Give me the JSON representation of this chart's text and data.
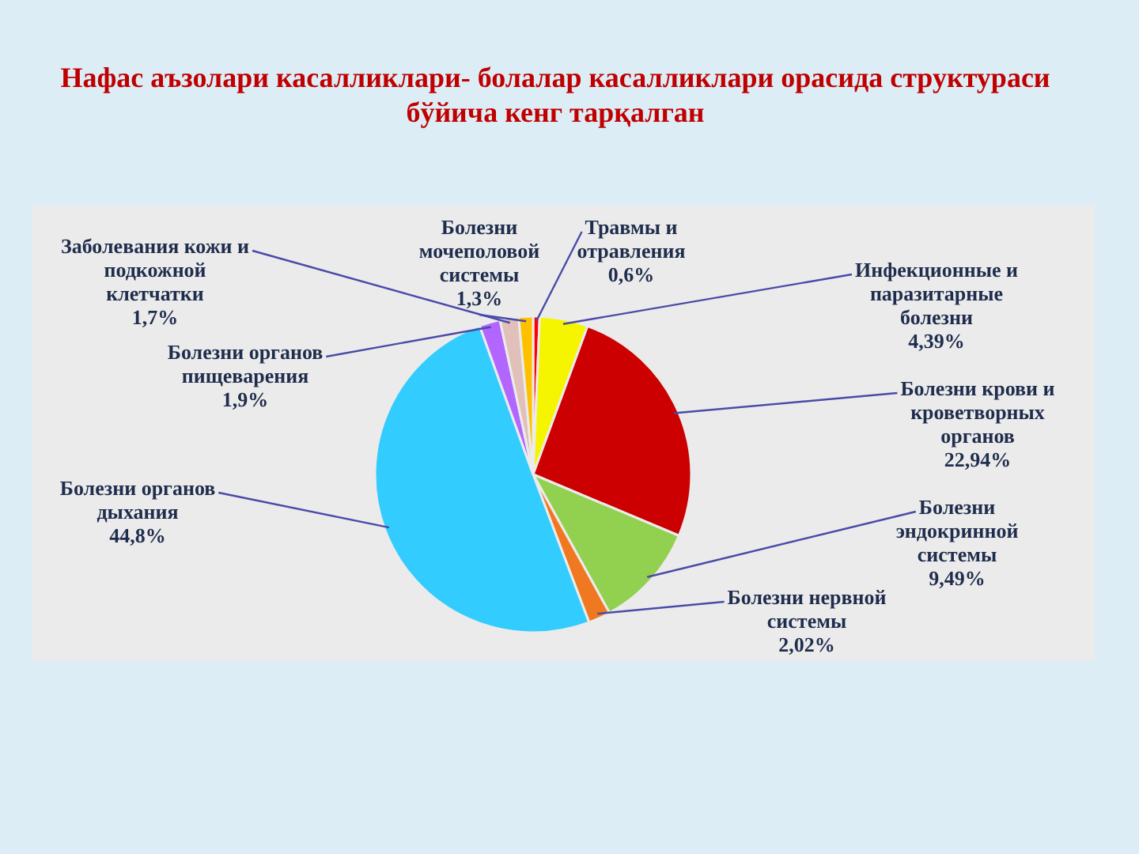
{
  "chart_data": {
    "type": "pie",
    "title": "Нафас аъзолари касалликлари- болалар касалликлари орасида структураси бўйича кенг тарқалган",
    "categories": [
      "Травмы и отравления",
      "Инфекционные и паразитарные болезни",
      "Болезни крови и кроветворных органов",
      "Болезни эндокринной системы",
      "Болезни нервной системы",
      "Болезни органов дыхания",
      "Болезни органов пищеварения",
      "Заболевания кожи и подкожной клетчатки",
      "Болезни мочеполовой системы"
    ],
    "values": [
      0.6,
      4.39,
      22.94,
      9.49,
      2.02,
      44.8,
      1.9,
      1.7,
      1.3
    ],
    "colors": [
      "#ff0000",
      "#f5f500",
      "#cc0000",
      "#92d050",
      "#f07820",
      "#33ccff",
      "#b266ff",
      "#e0c0b8",
      "#ffc000"
    ],
    "value_labels": [
      "0,6%",
      "4,39%",
      "22,94%",
      "9,49%",
      "2,02%",
      "44,8%",
      "1,9%",
      "1,7%",
      "1,3%"
    ]
  }
}
